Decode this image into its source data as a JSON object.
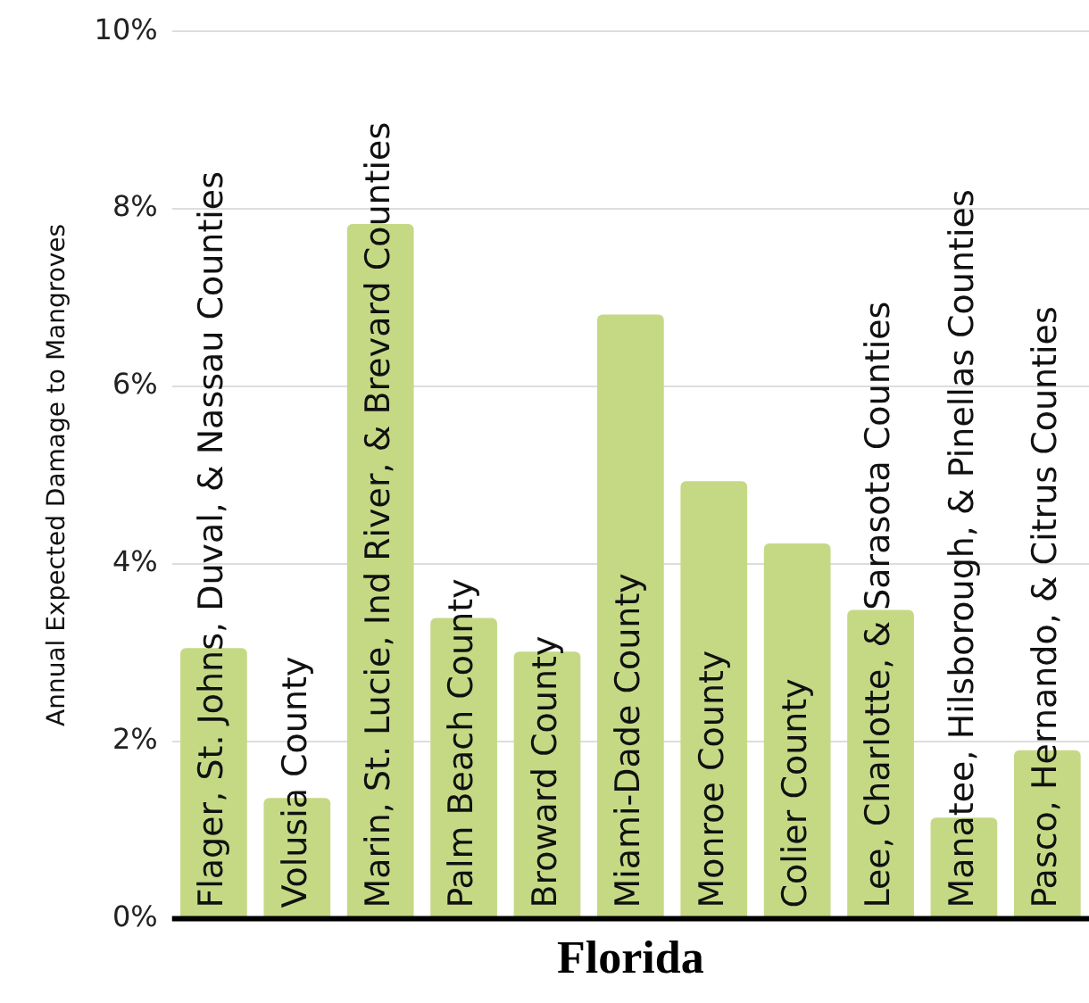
{
  "chart_data": {
    "type": "bar",
    "xlabel": "Florida",
    "ylabel": "Annual Expected Damage to Mangroves",
    "categories": [
      "Flager, St. Johns, Duval, & Nassau Counties",
      "Volusia County",
      "Marin, St. Lucie, Ind River, & Brevard Counties",
      "Palm Beach County",
      "Broward County",
      "Miami-Dade County",
      "Monroe County",
      "Colier County",
      "Lee, Charlotte, & Sarasota Counties",
      "Manatee, Hilsborough, & Pinellas Counties",
      "Pasco, Hernando, & Citrus Counties"
    ],
    "values": [
      3.05,
      1.36,
      7.83,
      3.39,
      3.01,
      6.81,
      4.93,
      4.23,
      3.48,
      1.14,
      1.9
    ],
    "color": "#c5d985",
    "ylim": [
      0,
      10
    ],
    "yticks": [
      {
        "value": 0,
        "label": "0%"
      },
      {
        "value": 2,
        "label": "2%"
      },
      {
        "value": 4,
        "label": "4%"
      },
      {
        "value": 6,
        "label": "6%"
      },
      {
        "value": 8,
        "label": "8%"
      },
      {
        "value": 10,
        "label": "10%"
      }
    ],
    "grid": "y",
    "legend": false
  }
}
